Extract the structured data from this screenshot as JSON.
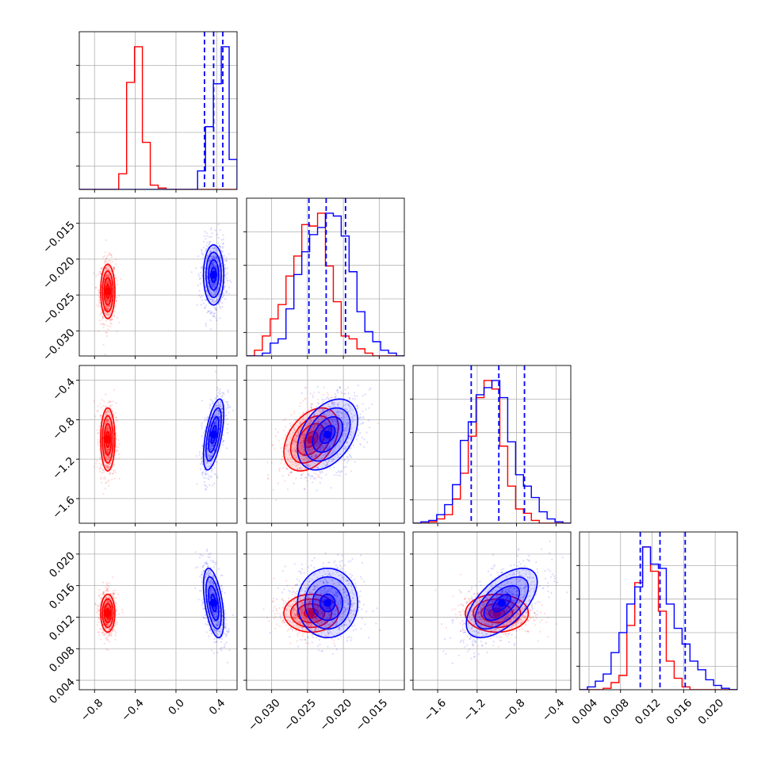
{
  "chart_data": {
    "type": "corner",
    "grid": true,
    "params": [
      {
        "ticks": [
          -0.8,
          -0.4,
          0.0,
          0.4
        ],
        "tick_labels": [
          "−0.8",
          "−0.4",
          "0.0",
          "0.4"
        ],
        "range": [
          -0.95,
          0.6
        ]
      },
      {
        "ticks": [
          -0.03,
          -0.025,
          -0.02,
          -0.015
        ],
        "tick_labels": [
          "−0.030",
          "−0.025",
          "−0.020",
          "−0.015"
        ],
        "range": [
          -0.0335,
          -0.0115
        ]
      },
      {
        "ticks": [
          -1.6,
          -1.2,
          -0.8,
          -0.4
        ],
        "tick_labels": [
          "−1.6",
          "−1.2",
          "−0.8",
          "−0.4"
        ],
        "range": [
          -1.85,
          -0.25
        ]
      },
      {
        "ticks": [
          0.004,
          0.008,
          0.012,
          0.016,
          0.02
        ],
        "tick_labels": [
          "0.004",
          "0.008",
          "0.012",
          "0.016",
          "0.020"
        ],
        "range": [
          0.0028,
          0.0228
        ]
      }
    ],
    "series": [
      {
        "color": "#ff0000",
        "mean": [
          -0.67,
          -0.0245,
          -1.0,
          0.0125
        ],
        "std": [
          0.035,
          0.0019,
          0.16,
          0.0012
        ],
        "corr": [
          [
            1,
            0,
            0,
            0
          ],
          [
            0,
            1,
            0.4,
            0
          ],
          [
            0,
            0.4,
            1,
            0
          ],
          [
            0,
            0,
            0,
            1
          ]
        ],
        "hist": [
          [
            0,
            0,
            0,
            0,
            0,
            0.11,
            0.75,
            1.0,
            0.33,
            0.03,
            0.01,
            0,
            0,
            0,
            0,
            0,
            0,
            0,
            0,
            0
          ],
          [
            0,
            0.04,
            0.14,
            0.26,
            0.36,
            0.56,
            0.7,
            0.92,
            0.91,
            1.0,
            0.63,
            0.38,
            0.14,
            0.12,
            0.05,
            0.02,
            0,
            0,
            0,
            0
          ],
          [
            0,
            0,
            0.01,
            0.03,
            0.06,
            0.17,
            0.35,
            0.61,
            0.88,
            1.0,
            0.94,
            0.54,
            0.26,
            0.1,
            0.07,
            0.02,
            0,
            0,
            0,
            0
          ],
          [
            0,
            0,
            0,
            0.01,
            0.05,
            0.1,
            0.45,
            0.75,
            1.0,
            0.83,
            0.55,
            0.2,
            0.08,
            0.02,
            0,
            0,
            0,
            0,
            0,
            0
          ]
        ]
      },
      {
        "color": "#0000ff",
        "mean": [
          0.37,
          -0.0222,
          -0.95,
          0.0138
        ],
        "std": [
          0.05,
          0.0021,
          0.18,
          0.0022
        ],
        "corr": [
          [
            1,
            0,
            0.6,
            -0.5
          ],
          [
            0,
            1,
            0.4,
            0
          ],
          [
            0.6,
            0.4,
            1,
            0.6
          ],
          [
            -0.5,
            0,
            0.6,
            1
          ]
        ],
        "quantiles": [
          [
            0.28,
            0.37,
            0.46
          ],
          [
            -0.0248,
            -0.0224,
            -0.0197
          ],
          [
            -1.26,
            -0.98,
            -0.72
          ],
          [
            0.0105,
            0.013,
            0.0162
          ]
        ],
        "hist": [
          [
            0,
            0,
            0,
            0,
            0,
            0,
            0,
            0,
            0,
            0,
            0,
            0,
            0,
            0,
            0,
            0.13,
            0.44,
            0.74,
            1.0,
            0.21
          ],
          [
            0,
            0,
            0.02,
            0.09,
            0.12,
            0.33,
            0.57,
            0.73,
            0.85,
            0.9,
            1.0,
            0.98,
            0.84,
            0.59,
            0.31,
            0.17,
            0.1,
            0.04,
            0.02,
            0
          ],
          [
            0,
            0.01,
            0.02,
            0.06,
            0.13,
            0.27,
            0.58,
            0.71,
            0.9,
            0.95,
            1.0,
            0.88,
            0.57,
            0.34,
            0.26,
            0.18,
            0.08,
            0.03,
            0.01,
            0
          ],
          [
            0,
            0.02,
            0.06,
            0.11,
            0.26,
            0.4,
            0.6,
            0.72,
            1.0,
            0.88,
            0.85,
            0.6,
            0.43,
            0.32,
            0.2,
            0.14,
            0.07,
            0.03,
            0.01,
            0
          ]
        ]
      }
    ]
  }
}
